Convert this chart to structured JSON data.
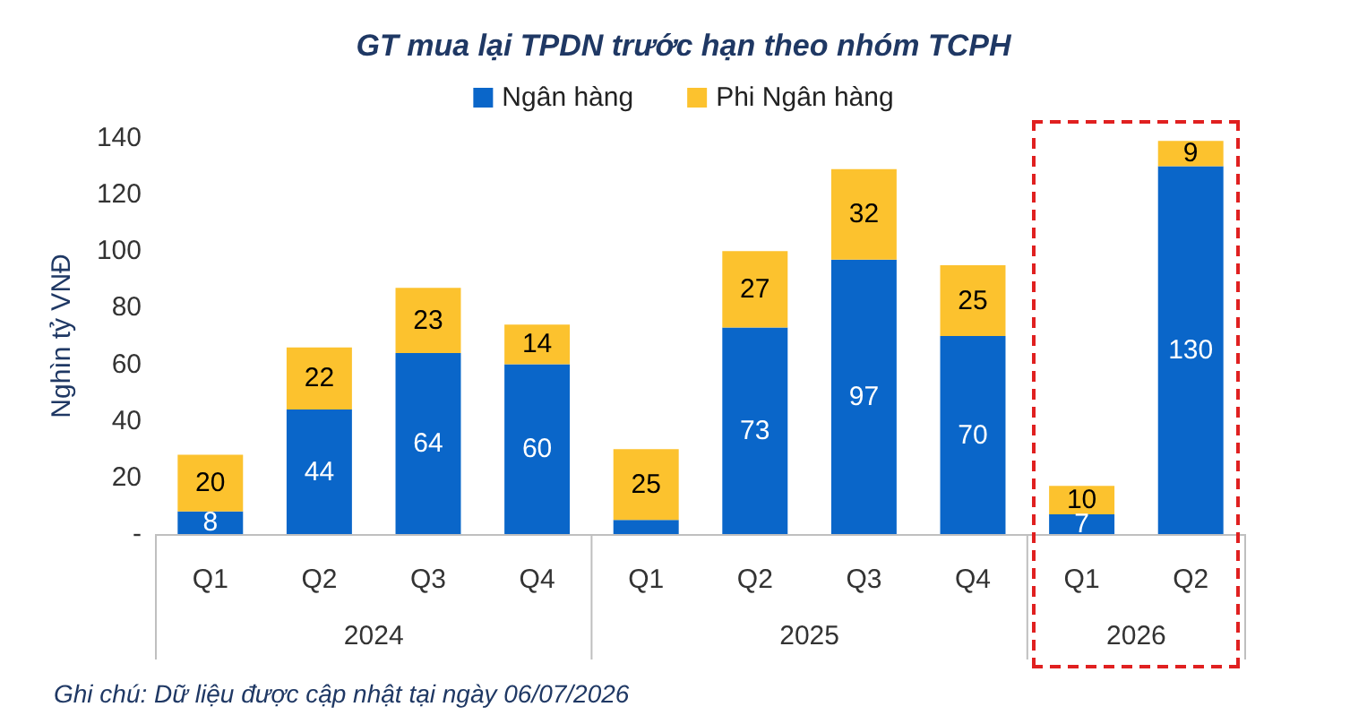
{
  "chart_data": {
    "type": "bar",
    "title": "GT mua lại TPDN trước hạn theo nhóm TCPH",
    "ylabel": "Nghìn tỷ VNĐ",
    "categories": [
      "Q1",
      "Q2",
      "Q3",
      "Q4",
      "Q1",
      "Q2",
      "Q3",
      "Q4",
      "Q1",
      "Q2"
    ],
    "series": [
      {
        "name": "Ngân hàng",
        "color": "#0a66c9",
        "values": [
          8,
          44,
          64,
          60,
          5,
          73,
          97,
          70,
          7,
          130
        ],
        "value_labels": [
          "8",
          "44",
          "64",
          "60",
          null,
          "73",
          "97",
          "70",
          "7",
          "130"
        ]
      },
      {
        "name": "Phi Ngân hàng",
        "color": "#fcc22e",
        "values": [
          20,
          22,
          23,
          14,
          25,
          27,
          32,
          25,
          10,
          9
        ],
        "value_labels": [
          "20",
          "22",
          "23",
          "14",
          "25",
          "27",
          "32",
          "25",
          "10",
          "9"
        ]
      }
    ],
    "stacked": true,
    "ylim": [
      0,
      140
    ],
    "yticks": [
      {
        "value": 0,
        "label": "-"
      },
      20,
      40,
      60,
      80,
      100,
      120,
      140
    ],
    "grid": false,
    "legend": "top",
    "annotations": [
      "2024",
      "2025",
      "2026",
      "Ghi chú: Dữ liệu được cập nhật tại ngày 06/07/2026"
    ]
  }
}
